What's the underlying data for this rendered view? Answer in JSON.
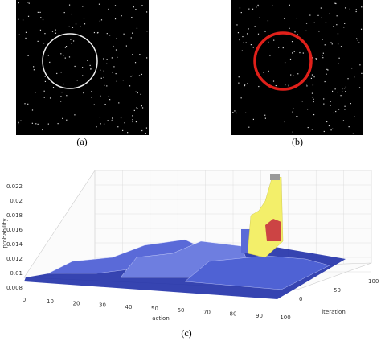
{
  "figures": [
    {
      "caption": "(a)"
    },
    {
      "caption": "(b)"
    }
  ],
  "plot": {
    "caption": "(c)",
    "z_label": "probability",
    "x_label": "action",
    "y_label": "iteration",
    "z_ticks": [
      "0.022",
      "0.02",
      "0.018",
      "0.016",
      "0.014",
      "0.012",
      "0.01",
      "0.008"
    ],
    "x_ticks": [
      "0",
      "10",
      "20",
      "30",
      "40",
      "50",
      "60",
      "70",
      "80",
      "90",
      "100"
    ],
    "y_ticks": [
      "0",
      "50",
      "100"
    ]
  }
}
